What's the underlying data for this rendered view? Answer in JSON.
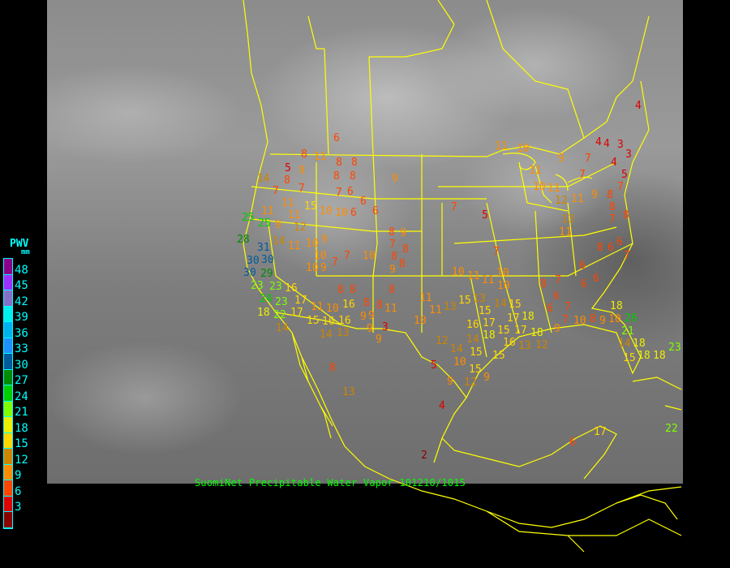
{
  "title": "SuomiNet Precipitable Water Vapor 101210/1015",
  "legend": {
    "title": "PWV",
    "unit": "mm",
    "ticks": [
      "48",
      "45",
      "42",
      "39",
      "36",
      "33",
      "30",
      "27",
      "24",
      "21",
      "18",
      "15",
      "12",
      "9",
      "6",
      "3"
    ],
    "colors": [
      "#8b008b",
      "#9b30ff",
      "#8470c8",
      "#00eeee",
      "#00b2ee",
      "#1e90ff",
      "#005a9c",
      "#008b00",
      "#00cd00",
      "#7fff00",
      "#eeee00",
      "#ffd700",
      "#cd8500",
      "#ff8c00",
      "#ff4500",
      "#dd0000",
      "#8b0000"
    ]
  },
  "border_color": "#ffff00",
  "stations": [
    8,
    11,
    5,
    9,
    14,
    8,
    7,
    7,
    6,
    8,
    8,
    8,
    8,
    7,
    6,
    6,
    9,
    11,
    11,
    11,
    15,
    10,
    10,
    6,
    6,
    9,
    12,
    25,
    25,
    28,
    31,
    30,
    30,
    29,
    30,
    23,
    23,
    24,
    23,
    22,
    14,
    11,
    10,
    9,
    10,
    7,
    7,
    10,
    9,
    10,
    8,
    9,
    7,
    8,
    8,
    9,
    8,
    8,
    8,
    8,
    8,
    8,
    11,
    9,
    3,
    9,
    9,
    10,
    11,
    16,
    17,
    18,
    17,
    16,
    16,
    15,
    14,
    14,
    13,
    8,
    13,
    9,
    16,
    11,
    10,
    11,
    13,
    15,
    12,
    14,
    14,
    10,
    15,
    5,
    9,
    15,
    12,
    18,
    17,
    15,
    13,
    14,
    15,
    17,
    16,
    15,
    16,
    17,
    18,
    12,
    10,
    11,
    11,
    10,
    10,
    5,
    7,
    7,
    11,
    10,
    9,
    7,
    7,
    4,
    4,
    3,
    3,
    4,
    5,
    7,
    9,
    8,
    8,
    7,
    8,
    11,
    10,
    11,
    12,
    11,
    13,
    11,
    8,
    6,
    6,
    7,
    6,
    6,
    6,
    7,
    8,
    6,
    7,
    6,
    7,
    10,
    9,
    8,
    9,
    10,
    18,
    26,
    21,
    14,
    18,
    18,
    15,
    18,
    23,
    22,
    17,
    6,
    4,
    2,
    4,
    18,
    13,
    15,
    9
  ]
}
